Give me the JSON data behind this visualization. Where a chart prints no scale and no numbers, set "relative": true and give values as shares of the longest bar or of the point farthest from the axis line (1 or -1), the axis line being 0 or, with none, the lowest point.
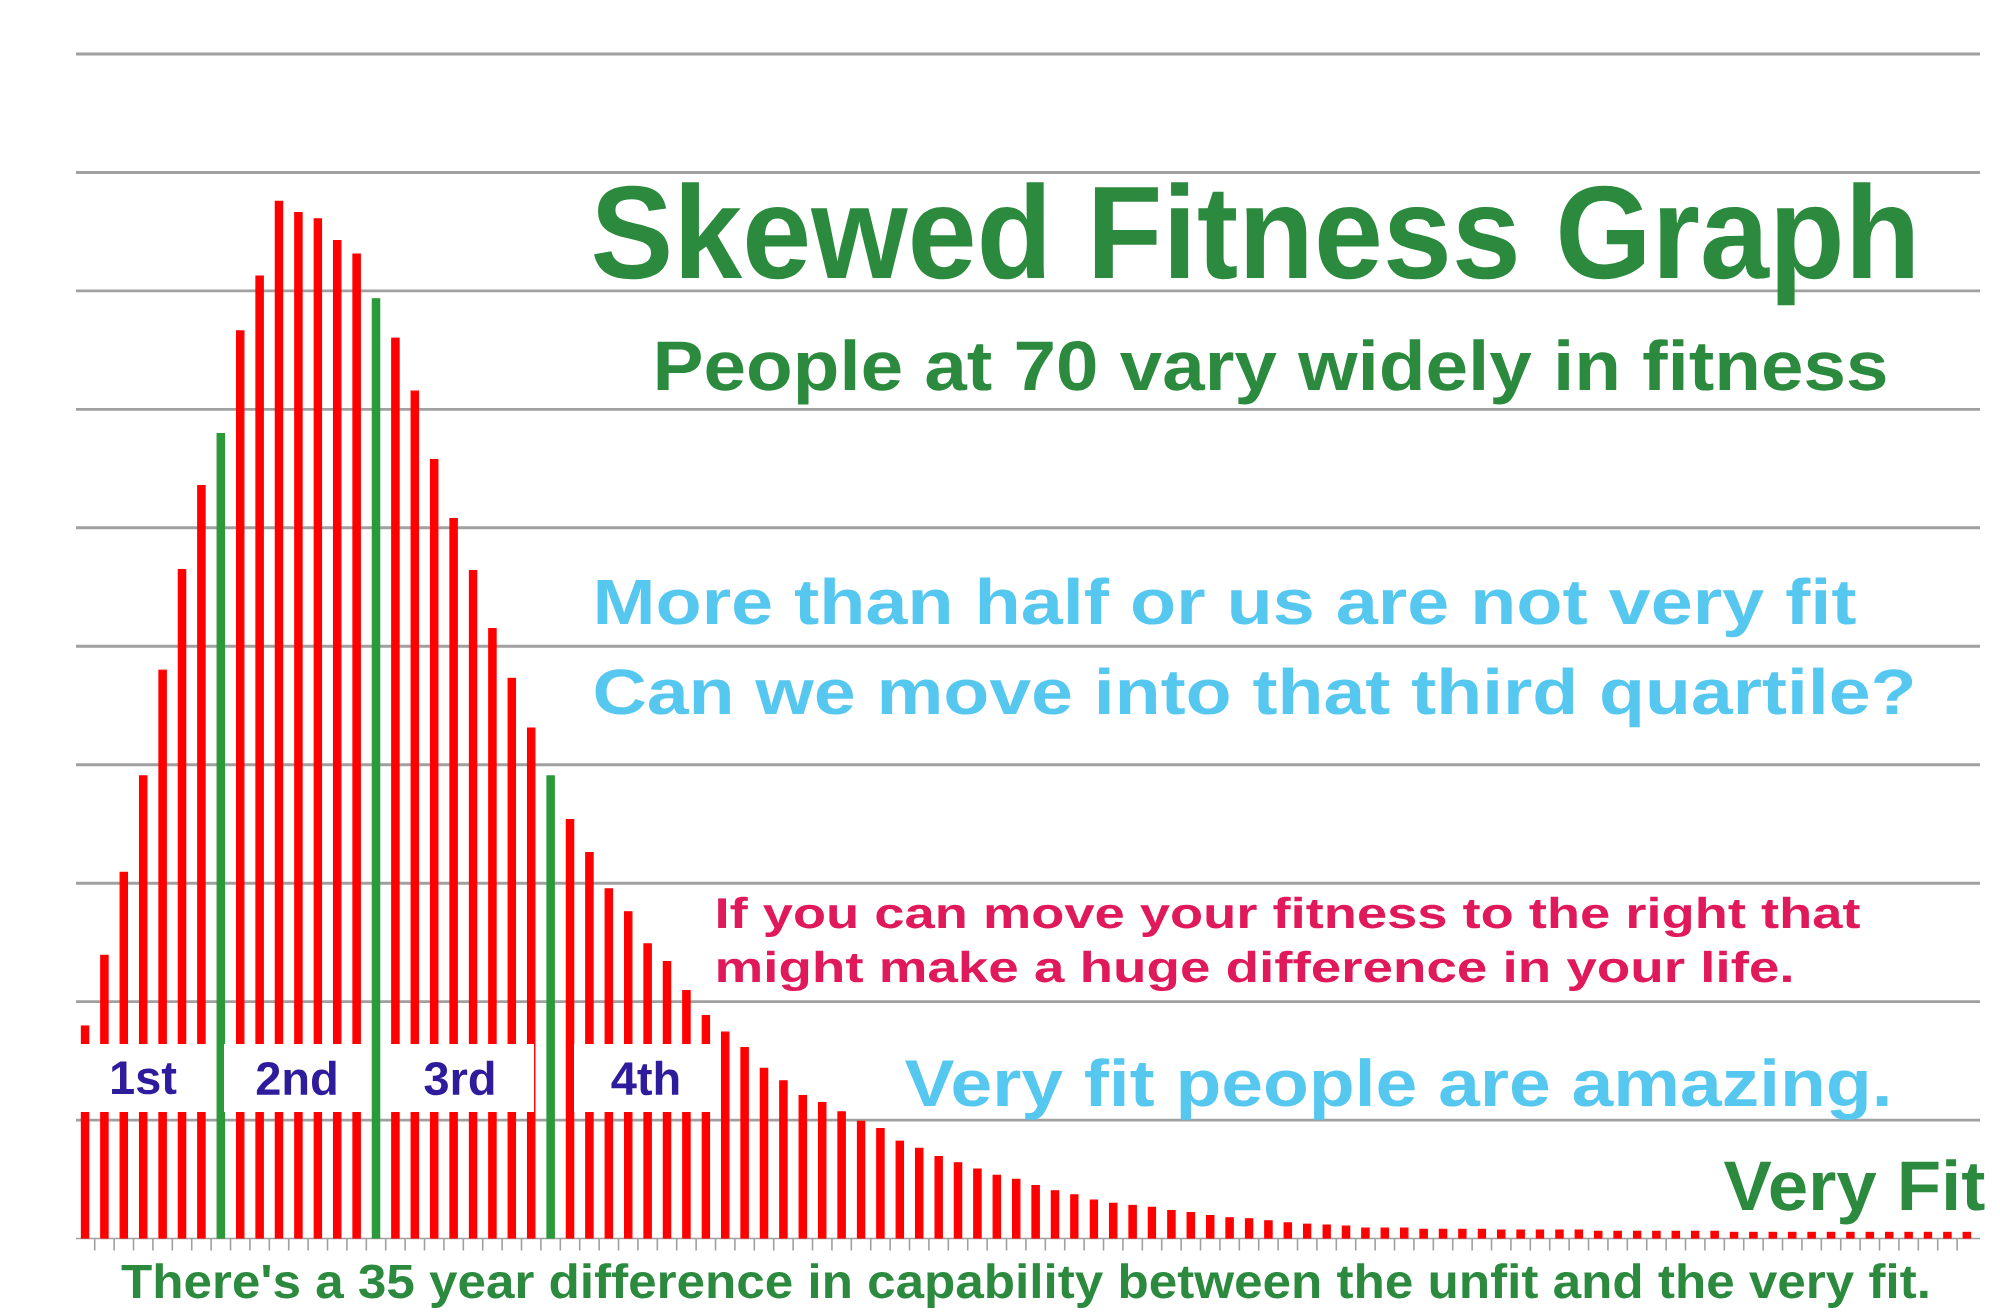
{
  "chart_data": {
    "type": "bar",
    "title": "Skewed Fitness Graph",
    "subtitle": "People at 70 vary widely in fitness",
    "relative": true,
    "grid": "y",
    "tick_labels": false,
    "categories": [
      null,
      null,
      null,
      null,
      null,
      null,
      null,
      null,
      null,
      null,
      null,
      null,
      null,
      null,
      null,
      null,
      null,
      null,
      null,
      null,
      null,
      null,
      null,
      null,
      null,
      null,
      null,
      null,
      null,
      null,
      null,
      null,
      null,
      null,
      null,
      null,
      null,
      null,
      null,
      null,
      null,
      null,
      null,
      null,
      null,
      null,
      null,
      null,
      null,
      null,
      null,
      null,
      null,
      null,
      null,
      null,
      null,
      null,
      null,
      null,
      null,
      null,
      null,
      null,
      null,
      null,
      null,
      null,
      null,
      null,
      null,
      null,
      null,
      null,
      null,
      null,
      null,
      null,
      null,
      null,
      null,
      null,
      null,
      null,
      null,
      null,
      null,
      null,
      null,
      null,
      null,
      null,
      null,
      null,
      null,
      null,
      null,
      null
    ],
    "values": [
      0.205,
      0.273,
      0.353,
      0.446,
      0.548,
      0.645,
      0.726,
      0.776,
      0.875,
      0.928,
      1,
      0.989,
      0.983,
      0.962,
      0.949,
      0.906,
      0.868,
      0.817,
      0.751,
      0.694,
      0.644,
      0.588,
      0.54,
      0.492,
      0.446,
      0.404,
      0.372,
      0.337,
      0.315,
      0.284,
      0.267,
      0.239,
      0.215,
      0.199,
      0.184,
      0.164,
      0.152,
      0.138,
      0.131,
      0.122,
      0.113,
      0.106,
      0.094,
      0.087,
      0.079,
      0.073,
      0.067,
      0.061,
      0.057,
      0.051,
      0.046,
      0.042,
      0.037,
      0.034,
      0.032,
      0.03,
      0.027,
      0.025,
      0.022,
      0.02,
      0.019,
      0.017,
      0.015,
      0.014,
      0.013,
      0.012,
      0.01,
      0.01,
      0.01,
      0.009,
      0.009,
      0.009,
      0.009,
      0.008,
      0.008,
      0.008,
      0.008,
      0.008,
      0.007,
      0.007,
      0.007,
      0.007,
      0.007,
      0.007,
      0.007,
      0.006,
      0.006,
      0.006,
      0.006,
      0.006,
      0.006,
      0.006,
      0.006,
      0.006,
      0.006,
      0.006,
      0.006,
      0.006
    ],
    "colors": [
      "#ff0000",
      "#ff0000",
      "#ff0000",
      "#ff0000",
      "#ff0000",
      "#ff0000",
      "#ff0000",
      "#2a9a3a",
      "#ff0000",
      "#ff0000",
      "#ff0000",
      "#ff0000",
      "#ff0000",
      "#ff0000",
      "#ff0000",
      "#2a9a3a",
      "#ff0000",
      "#ff0000",
      "#ff0000",
      "#ff0000",
      "#ff0000",
      "#ff0000",
      "#ff0000",
      "#ff0000",
      "#2a9a3a",
      "#ff0000",
      "#ff0000",
      "#ff0000",
      "#ff0000",
      "#ff0000",
      "#ff0000",
      "#ff0000",
      "#ff0000",
      "#ff0000",
      "#ff0000",
      "#ff0000",
      "#ff0000",
      "#ff0000",
      "#ff0000",
      "#ff0000",
      "#ff0000",
      "#ff0000",
      "#ff0000",
      "#ff0000",
      "#ff0000",
      "#ff0000",
      "#ff0000",
      "#ff0000",
      "#ff0000",
      "#ff0000",
      "#ff0000",
      "#ff0000",
      "#ff0000",
      "#ff0000",
      "#ff0000",
      "#ff0000",
      "#ff0000",
      "#ff0000",
      "#ff0000",
      "#ff0000",
      "#ff0000",
      "#ff0000",
      "#ff0000",
      "#ff0000",
      "#ff0000",
      "#ff0000",
      "#ff0000",
      "#ff0000",
      "#ff0000",
      "#ff0000",
      "#ff0000",
      "#ff0000",
      "#ff0000",
      "#ff0000",
      "#ff0000",
      "#ff0000",
      "#ff0000",
      "#ff0000",
      "#ff0000",
      "#ff0000",
      "#ff0000",
      "#ff0000",
      "#ff0000",
      "#ff0000",
      "#ff0000",
      "#ff0000",
      "#ff0000",
      "#ff0000",
      "#ff0000",
      "#ff0000",
      "#ff0000",
      "#ff0000",
      "#ff0000",
      "#ff0000",
      "#ff0000",
      "#ff0000",
      "#ff0000",
      "#ff0000"
    ],
    "annotations": [
      "More than half or us are not very fit",
      "Can we move into that third quartile?",
      "If you can move your fitness to the right that",
      "might make a huge difference in your life.",
      "Very fit people are amazing.",
      "1st",
      "2nd",
      "3rd",
      "4th",
      "Very Fit",
      "There's a 35 year difference in capability between the unfit and the very fit."
    ]
  }
}
